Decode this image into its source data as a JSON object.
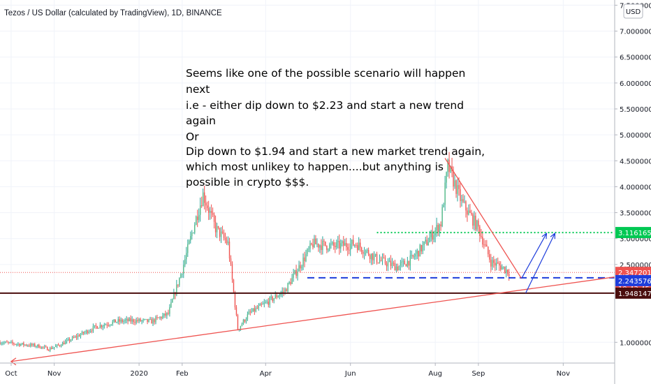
{
  "header": {
    "title": "Tezos / US Dollar (calculated by TradingView), 1D, BINANCE",
    "currency": "USD"
  },
  "annotation": {
    "lines": [
      "Seems like one of the possible scenario will happen",
      "next",
      "i.e - either dip down to $2.23 and start a new trend",
      "again",
      "Or",
      "Dip down to $1.94 and start a new market trend again,",
      "which most unlikey to happen....but anything is",
      "possible in crypto $$$."
    ]
  },
  "price_tags": [
    {
      "label": "3.1161655",
      "value": 3.1161655,
      "color": "#00c853",
      "text_color": "#ffffff"
    },
    {
      "label": "2.3472012",
      "value": 2.3472012,
      "color": "#ef5350",
      "text_color": "#ffffff"
    },
    {
      "label": "19:43:45",
      "value": 2.2,
      "color": "#ef5350",
      "text_color": "#ffffff"
    },
    {
      "label": "2.2435764",
      "value": 2.2435764,
      "color": "#1e3ddb",
      "text_color": "#ffffff"
    },
    {
      "label": "1.9481478",
      "value": 1.9481478,
      "color": "#4a0d0d",
      "text_color": "#ffffff"
    }
  ],
  "colors": {
    "up": "#26a69a",
    "up_fill": "#53b987",
    "down": "#ef5350",
    "grid": "#f0f3fa",
    "axis_text": "#131722",
    "green_dotted": "#00c853",
    "blue_dashed": "#1e3ddb",
    "dark_support": "#4a0d0d",
    "trend_red": "#ef5350",
    "projection_blue": "#1e3ddb"
  },
  "chart_data": {
    "type": "candlestick",
    "title": "Tezos / US Dollar (calculated by TradingView), 1D, BINANCE",
    "y_axis": {
      "ticks": [
        "1.0000000",
        "2.5000000",
        "3.0000000",
        "3.5000000",
        "4.0000000",
        "4.5000000",
        "5.0000000",
        "5.5000000",
        "6.0000000",
        "6.5000000",
        "7.0000000",
        "7.5000000"
      ],
      "tick_values": [
        1.0,
        2.5,
        3.0,
        3.5,
        4.0,
        4.5,
        5.0,
        5.5,
        6.0,
        6.5,
        7.0,
        7.5
      ],
      "range": [
        0.6,
        7.6
      ]
    },
    "x_axis": {
      "ticks": [
        "Oct",
        "Nov",
        "2020",
        "Feb",
        "Apr",
        "Jun",
        "Aug",
        "Sep",
        "Nov"
      ],
      "tick_dates": [
        "2019-10-01",
        "2019-11-01",
        "2020-01-01",
        "2020-02-01",
        "2020-04-01",
        "2020-06-01",
        "2020-08-01",
        "2020-09-01",
        "2020-11-01"
      ],
      "range": [
        "2019-09-23",
        "2020-12-08"
      ]
    },
    "price_path": [
      [
        "2019-09-23",
        1.0
      ],
      [
        "2019-10-05",
        0.97
      ],
      [
        "2019-10-20",
        0.93
      ],
      [
        "2019-10-28",
        0.87
      ],
      [
        "2019-11-05",
        0.95
      ],
      [
        "2019-11-20",
        1.15
      ],
      [
        "2019-12-01",
        1.3
      ],
      [
        "2019-12-15",
        1.4
      ],
      [
        "2019-12-28",
        1.42
      ],
      [
        "2020-01-10",
        1.4
      ],
      [
        "2020-01-22",
        1.55
      ],
      [
        "2020-02-01",
        2.4
      ],
      [
        "2020-02-10",
        3.3
      ],
      [
        "2020-02-16",
        3.85
      ],
      [
        "2020-02-25",
        3.2
      ],
      [
        "2020-03-05",
        2.9
      ],
      [
        "2020-03-12",
        1.25
      ],
      [
        "2020-03-20",
        1.55
      ],
      [
        "2020-04-01",
        1.75
      ],
      [
        "2020-04-15",
        2.0
      ],
      [
        "2020-04-25",
        2.45
      ],
      [
        "2020-05-05",
        2.9
      ],
      [
        "2020-05-20",
        2.85
      ],
      [
        "2020-06-05",
        2.9
      ],
      [
        "2020-06-20",
        2.6
      ],
      [
        "2020-07-05",
        2.45
      ],
      [
        "2020-07-15",
        2.6
      ],
      [
        "2020-07-25",
        2.9
      ],
      [
        "2020-08-05",
        3.3
      ],
      [
        "2020-08-10",
        4.4
      ],
      [
        "2020-08-20",
        3.7
      ],
      [
        "2020-09-01",
        3.2
      ],
      [
        "2020-09-10",
        2.55
      ],
      [
        "2020-09-18",
        2.45
      ],
      [
        "2020-09-23",
        2.35
      ]
    ],
    "horizontal_levels": [
      {
        "value": 3.1161655,
        "style": "dotted",
        "color": "#00c853",
        "from": "2020-06-20"
      },
      {
        "value": 2.3472012,
        "style": "dotted-thin",
        "color": "#ef5350",
        "from": "2019-09-23"
      },
      {
        "value": 2.2435764,
        "style": "dashed",
        "color": "#1e3ddb",
        "from": "2020-05-01"
      },
      {
        "value": 1.9481478,
        "style": "solid",
        "color": "#4a0d0d",
        "from": "2019-09-23"
      }
    ],
    "trend_lines": [
      {
        "from": [
          "2019-10-01",
          0.63
        ],
        "to": [
          "2020-12-08",
          2.26
        ],
        "color": "#ef5350"
      },
      {
        "from": [
          "2020-08-08",
          4.55
        ],
        "to": [
          "2020-10-02",
          2.23
        ],
        "color": "#ef5350"
      }
    ],
    "projection_arrows": [
      {
        "points": [
          [
            "2020-10-02",
            2.23
          ],
          [
            "2020-10-20",
            3.1
          ]
        ],
        "color": "#1e3ddb"
      },
      {
        "points": [
          [
            "2020-10-05",
            1.95
          ],
          [
            "2020-10-26",
            3.1
          ]
        ],
        "color": "#1e3ddb"
      }
    ],
    "legend": "none",
    "grid": true
  }
}
